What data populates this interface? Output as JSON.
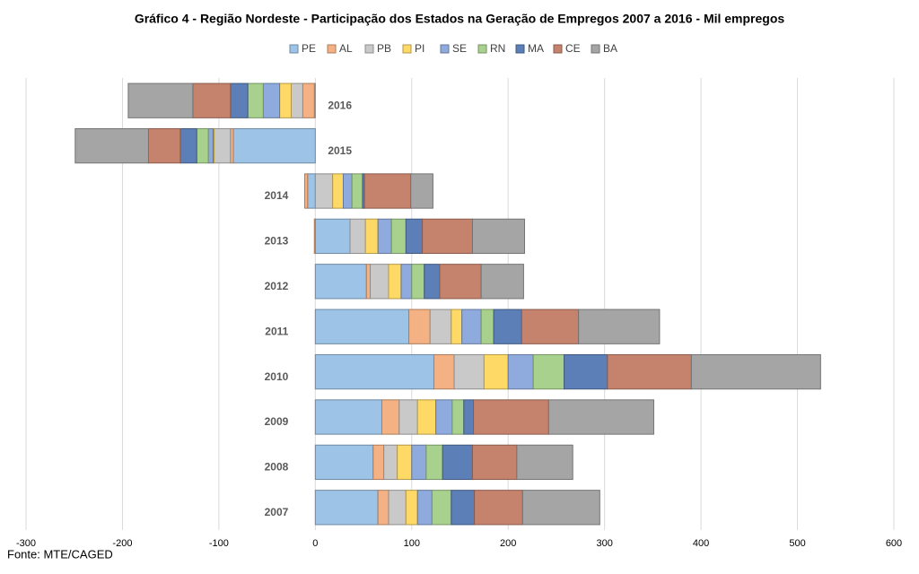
{
  "chart_data": {
    "type": "stacked-bar-horizontal",
    "title": "Gráfico 4 - Região Nordeste - Participação dos Estados na Geração de Empregos 2007 a 2016 - Mil empregos",
    "source": "Fonte: MTE/CAGED",
    "categories": [
      "2007",
      "2008",
      "2009",
      "2010",
      "2011",
      "2012",
      "2013",
      "2014",
      "2015",
      "2016"
    ],
    "series": [
      {
        "name": "PE",
        "color": "#9dc3e6",
        "values": [
          65,
          60,
          69,
          123,
          97,
          53,
          36,
          -8,
          -85,
          -1
        ]
      },
      {
        "name": "AL",
        "color": "#f4b183",
        "values": [
          11,
          11,
          18,
          21,
          22,
          4,
          -1,
          -3,
          -3,
          -12
        ]
      },
      {
        "name": "PB",
        "color": "#c9c9c9",
        "values": [
          18,
          14,
          19,
          31,
          22,
          19,
          16,
          18,
          -17,
          -12
        ]
      },
      {
        "name": "PI",
        "color": "#ffd966",
        "values": [
          12,
          15,
          19,
          25,
          11,
          13,
          13,
          11,
          -1,
          -12
        ]
      },
      {
        "name": "SE",
        "color": "#8faadc",
        "values": [
          15,
          15,
          17,
          26,
          20,
          11,
          14,
          9,
          -5,
          -17
        ]
      },
      {
        "name": "RN",
        "color": "#a9d18e",
        "values": [
          20,
          17,
          12,
          32,
          13,
          13,
          15,
          11,
          -12,
          -16
        ]
      },
      {
        "name": "MA",
        "color": "#5b7fb6",
        "values": [
          24,
          31,
          10,
          45,
          29,
          16,
          17,
          2,
          -17,
          -18
        ]
      },
      {
        "name": "CE",
        "color": "#c5826c",
        "values": [
          50,
          46,
          78,
          87,
          59,
          43,
          52,
          48,
          -33,
          -39
        ]
      },
      {
        "name": "BA",
        "color": "#a5a5a5",
        "values": [
          80,
          58,
          109,
          134,
          84,
          44,
          54,
          23,
          -76,
          -67
        ]
      }
    ],
    "xlim": [
      -300,
      600
    ],
    "xticks": [
      -300,
      -200,
      -100,
      0,
      100,
      200,
      300,
      400,
      500,
      600
    ],
    "grid": true,
    "legend": "top"
  }
}
